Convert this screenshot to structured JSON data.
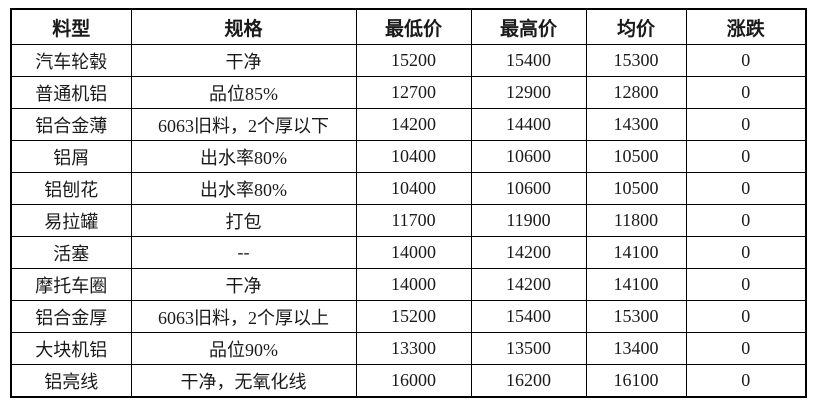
{
  "table": {
    "columns": [
      {
        "key": "material",
        "label": "料型"
      },
      {
        "key": "spec",
        "label": "规格"
      },
      {
        "key": "min-price",
        "label": "最低价"
      },
      {
        "key": "max-price",
        "label": "最高价"
      },
      {
        "key": "avg-price",
        "label": "均价"
      },
      {
        "key": "change",
        "label": "涨跌"
      }
    ],
    "rows": [
      [
        "汽车轮毂",
        "干净",
        "15200",
        "15400",
        "15300",
        "0"
      ],
      [
        "普通机铝",
        "品位85%",
        "12700",
        "12900",
        "12800",
        "0"
      ],
      [
        "铝合金薄",
        "6063旧料，2个厚以下",
        "14200",
        "14400",
        "14300",
        "0"
      ],
      [
        "铝屑",
        "出水率80%",
        "10400",
        "10600",
        "10500",
        "0"
      ],
      [
        "铝刨花",
        "出水率80%",
        "10400",
        "10600",
        "10500",
        "0"
      ],
      [
        "易拉罐",
        "打包",
        "11700",
        "11900",
        "11800",
        "0"
      ],
      [
        "活塞",
        "--",
        "14000",
        "14200",
        "14100",
        "0"
      ],
      [
        "摩托车圈",
        "干净",
        "14000",
        "14200",
        "14100",
        "0"
      ],
      [
        "铝合金厚",
        "6063旧料，2个厚以上",
        "15200",
        "15400",
        "15300",
        "0"
      ],
      [
        "大块机铝",
        "品位90%",
        "13300",
        "13500",
        "13400",
        "0"
      ],
      [
        "铝亮线",
        "干净，无氧化线",
        "16000",
        "16200",
        "16100",
        "0"
      ]
    ],
    "colors": {
      "border": "#000000",
      "text": "#1a1a1a",
      "background": "#ffffff"
    }
  }
}
